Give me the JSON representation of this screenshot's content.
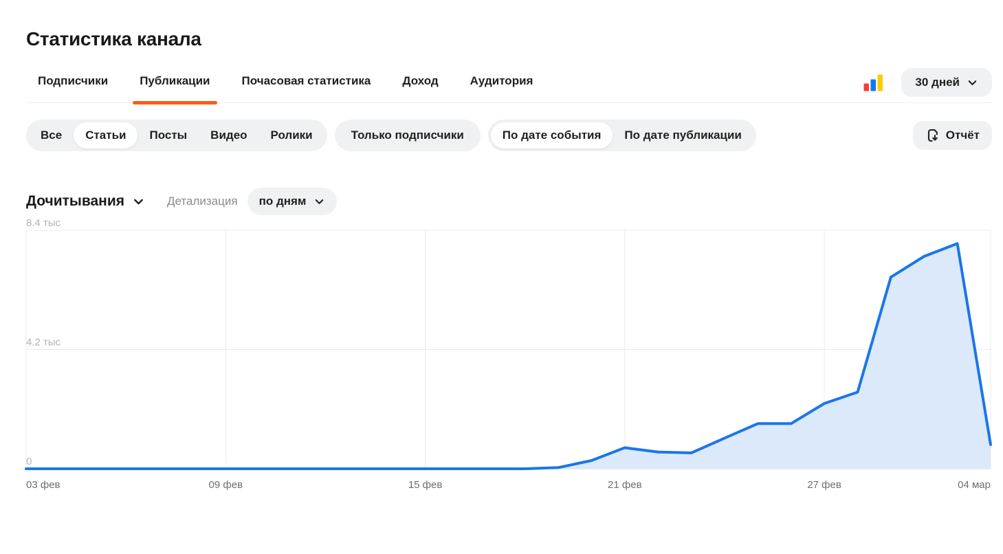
{
  "page": {
    "title": "Статистика канала"
  },
  "tabs": {
    "items": [
      {
        "label": "Подписчики"
      },
      {
        "label": "Публикации"
      },
      {
        "label": "Почасовая статистика"
      },
      {
        "label": "Доход"
      },
      {
        "label": "Аудитория"
      }
    ],
    "active": "Публикации",
    "period_button": {
      "label": "30 дней",
      "icon": "chevron-down-icon"
    },
    "chart_type_icon": "mini-bar-chart-icon"
  },
  "filters": {
    "type_options": [
      "Все",
      "Статьи",
      "Посты",
      "Видео",
      "Ролики"
    ],
    "type_selected": "Статьи",
    "subscribers_toggle": {
      "label": "Только подписчики",
      "active": false
    },
    "date_options": [
      "По дате события",
      "По дате публикации"
    ],
    "date_selected": "По дате события",
    "report_button": {
      "label": "Отчёт",
      "icon": "export-report-icon"
    }
  },
  "metric": {
    "title": "Дочитывания",
    "detail_label": "Детализация",
    "granularity_button": {
      "label": "по дням",
      "icon": "chevron-down-icon"
    }
  },
  "chart_data": {
    "type": "area",
    "title": "Дочитывания",
    "xlabel": "",
    "ylabel": "",
    "grid": true,
    "legend": false,
    "ylim": [
      0,
      8400
    ],
    "x": [
      "03 фев",
      "04 фев",
      "05 фев",
      "06 фев",
      "07 фев",
      "08 фев",
      "09 фев",
      "10 фев",
      "11 фев",
      "12 фев",
      "13 фев",
      "14 фев",
      "15 фев",
      "16 фев",
      "17 фев",
      "18 фев",
      "19 фев",
      "20 фев",
      "21 фев",
      "22 фев",
      "23 фев",
      "24 фев",
      "25 фев",
      "26 фев",
      "27 фев",
      "28 фев",
      "01 мар",
      "02 мар",
      "03 мар",
      "04 мар"
    ],
    "values": [
      0,
      0,
      0,
      0,
      0,
      0,
      0,
      0,
      0,
      0,
      0,
      0,
      0,
      0,
      0,
      0,
      40,
      290,
      740,
      590,
      560,
      1080,
      1590,
      1590,
      2300,
      2700,
      6750,
      7480,
      7930,
      850
    ],
    "yticks": [
      {
        "value": 0,
        "label": "0"
      },
      {
        "value": 4200,
        "label": "4.2 тыс"
      },
      {
        "value": 8400,
        "label": "8.4 тыс"
      }
    ],
    "xticks": [
      {
        "index": 0,
        "label": "03 фев"
      },
      {
        "index": 6,
        "label": "09 фев"
      },
      {
        "index": 12,
        "label": "15 фев"
      },
      {
        "index": 18,
        "label": "21 фев"
      },
      {
        "index": 24,
        "label": "27 фев"
      },
      {
        "index": 29,
        "label": "04 мар"
      }
    ]
  },
  "colors": {
    "accent_orange": "#fb5c19",
    "chart_line": "#1b76e8",
    "chart_fill": "#dbe9fa",
    "grid_line": "#ebebeb",
    "baseline": "#d9d9d9",
    "ytick_text": "#b3b3b3",
    "xtick_text": "#6e6e6e",
    "icon_bar_red": "#fb3b2f",
    "icon_bar_blue": "#0d78f2",
    "icon_bar_yellow": "#fdcb00"
  }
}
